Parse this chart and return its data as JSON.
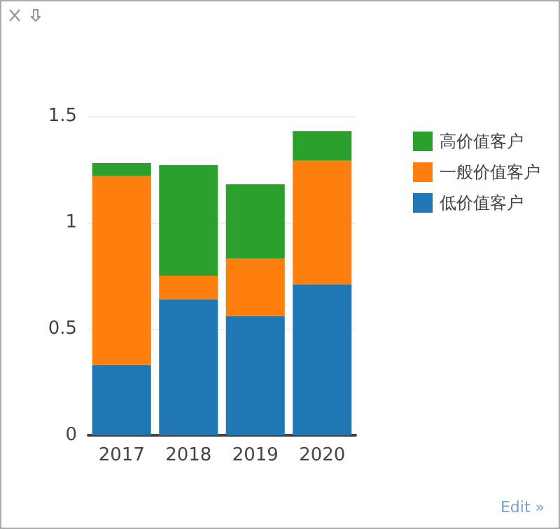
{
  "chart_data": {
    "type": "bar",
    "stacked": true,
    "categories": [
      "2017",
      "2018",
      "2019",
      "2020"
    ],
    "series": [
      {
        "name": "低价值客户",
        "color": "#1f77b4",
        "values": [
          0.33,
          0.64,
          0.56,
          0.71
        ]
      },
      {
        "name": "一般价值客户",
        "color": "#ff7f0e",
        "values": [
          0.89,
          0.11,
          0.27,
          0.58
        ]
      },
      {
        "name": "高价值客户",
        "color": "#2ca02c",
        "values": [
          0.06,
          0.52,
          0.35,
          0.14
        ]
      }
    ],
    "ylim": [
      0,
      1.5
    ],
    "yticks": [
      0,
      0.5,
      1,
      1.5
    ],
    "grid": "y",
    "legend": "right",
    "annotations": [
      "Edit »"
    ]
  }
}
